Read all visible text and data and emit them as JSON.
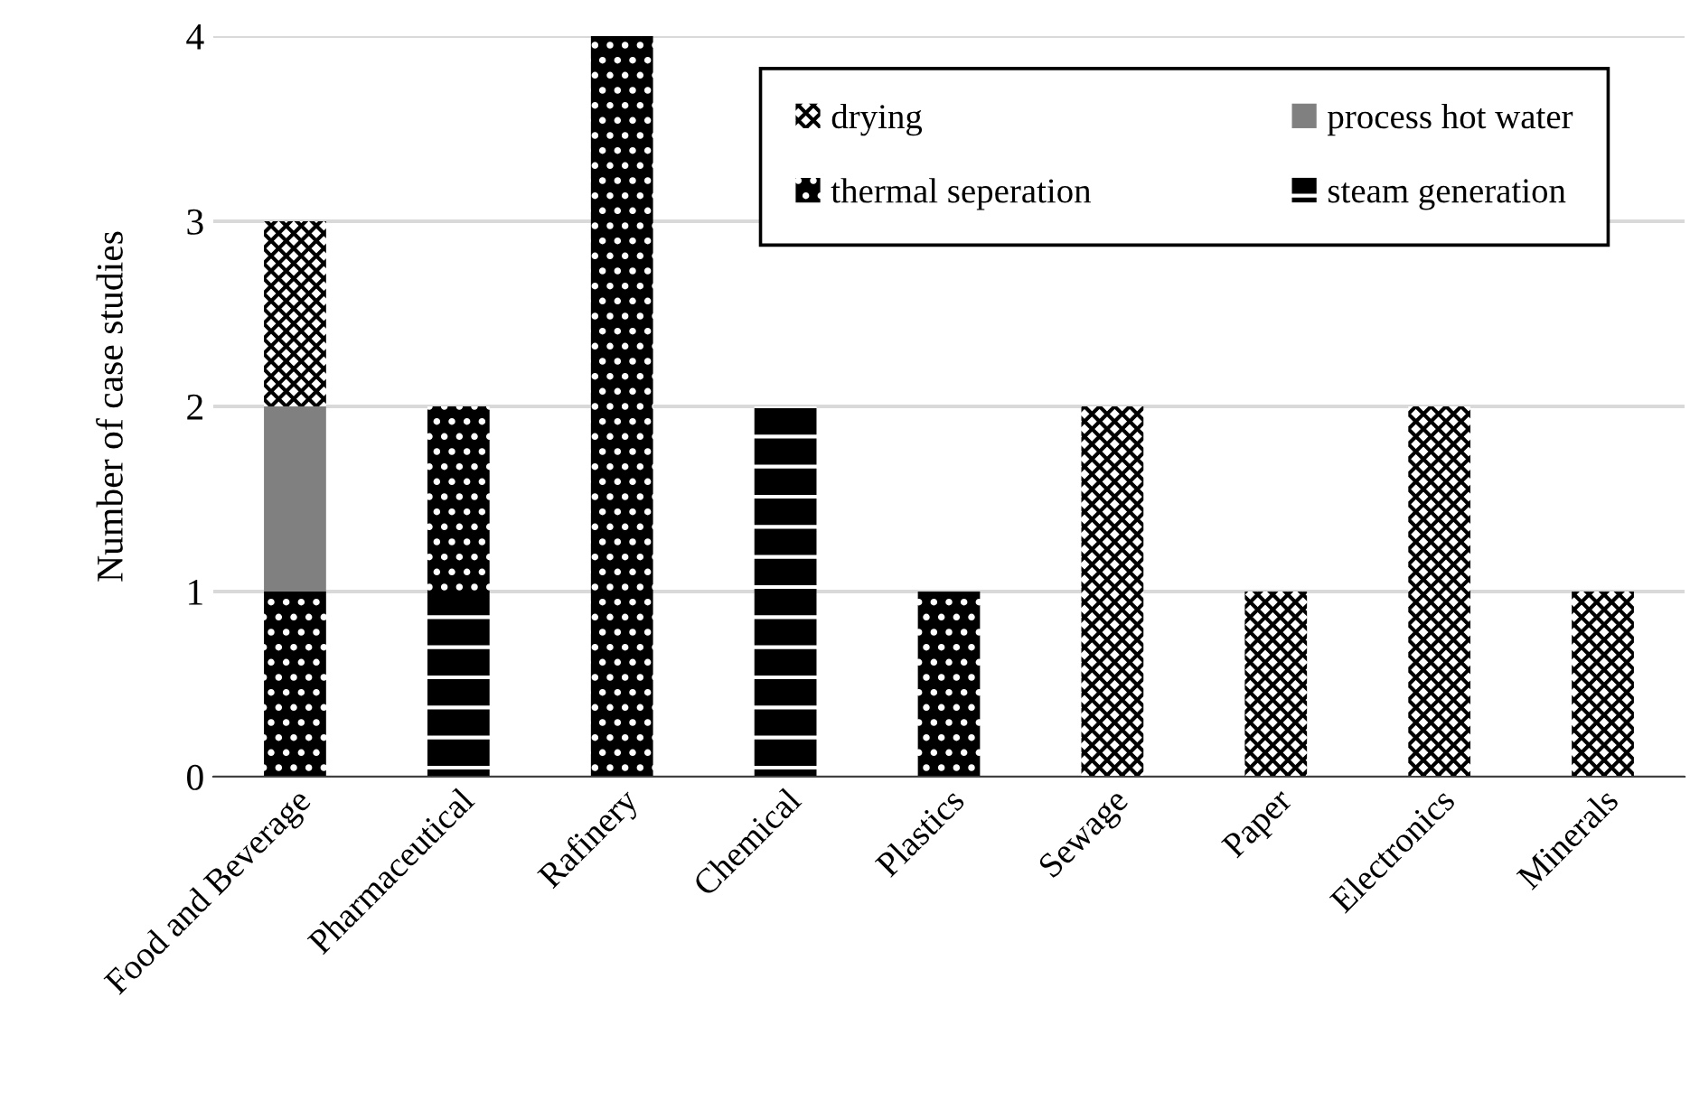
{
  "chart_data": {
    "type": "bar",
    "stacked": true,
    "ylabel": "Number of case studies",
    "categories": [
      "Food and Beverage",
      "Pharmaceutical",
      "Rafinery",
      "Chemical",
      "Plastics",
      "Sewage",
      "Paper",
      "Electronics",
      "Minerals"
    ],
    "series": [
      {
        "name": "steam generation",
        "color": "#000000",
        "values": [
          0,
          1,
          0,
          2,
          0,
          0,
          0,
          0,
          0
        ]
      },
      {
        "name": "thermal seperation",
        "color": "#000000",
        "values": [
          1,
          1,
          4,
          0,
          1,
          0,
          0,
          0,
          0
        ]
      },
      {
        "name": "process hot water",
        "color": "#808080",
        "values": [
          1,
          0,
          0,
          0,
          0,
          0,
          0,
          0,
          0
        ]
      },
      {
        "name": "drying",
        "color": "#ffffff",
        "values": [
          1,
          0,
          0,
          0,
          0,
          2,
          1,
          2,
          1
        ]
      }
    ],
    "ylim": [
      0,
      4
    ],
    "yticks": [
      0,
      1,
      2,
      3,
      4
    ],
    "grid": "y",
    "legend": "top right"
  }
}
